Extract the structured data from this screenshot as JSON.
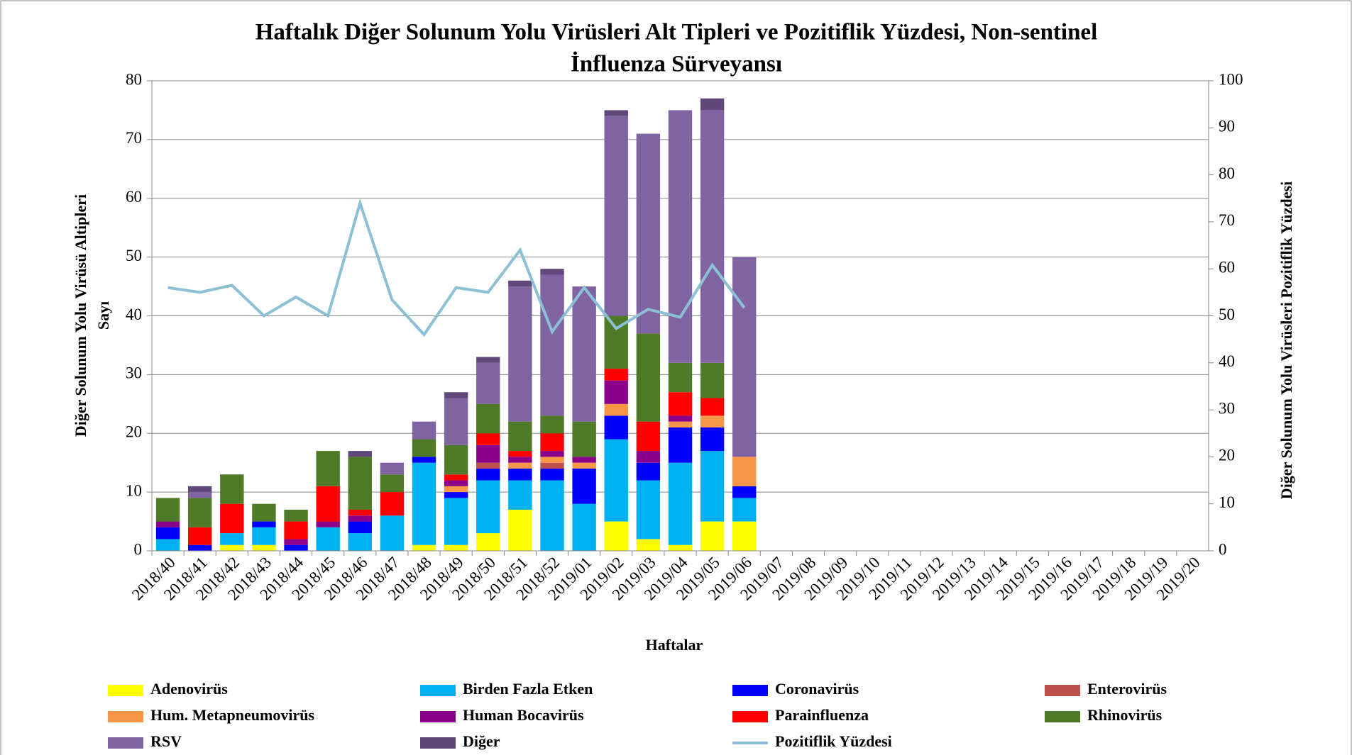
{
  "chart_data": {
    "type": "bar",
    "stacked": true,
    "title": [
      "Haftalık Diğer Solunum Yolu Virüsleri Alt Tipleri ve Pozitiflik Yüzdesi, Non-sentinel",
      "İnfluenza Sürveyansı"
    ],
    "x_label": "Haftalar",
    "y_label": [
      "Diğer Solunum Yolu Virüsü Altipleri",
      "Sayı"
    ],
    "y2_label": "Diğer Solunum Yolu Virüsleri Pozitiflik Yüzdesi",
    "categories": [
      "2018/40",
      "2018/41",
      "2018/42",
      "2018/43",
      "2018/44",
      "2018/45",
      "2018/46",
      "2018/47",
      "2018/48",
      "2018/49",
      "2018/50",
      "2018/51",
      "2018/52",
      "2019/01",
      "2019/02",
      "2019/03",
      "2019/04",
      "2019/05",
      "2019/06",
      "2019/07",
      "2019/08",
      "2019/09",
      "2019/10",
      "2019/11",
      "2019/12",
      "2019/13",
      "2019/14",
      "2019/15",
      "2019/16",
      "2019/17",
      "2019/18",
      "2019/19",
      "2019/20"
    ],
    "ylim": [
      0,
      80
    ],
    "yticks": [
      0,
      10,
      20,
      30,
      40,
      50,
      60,
      70,
      80
    ],
    "y2lim": [
      0,
      100
    ],
    "y2ticks": [
      0,
      10,
      20,
      30,
      40,
      50,
      60,
      70,
      80,
      90,
      100
    ],
    "grid": true,
    "legend": "bottom",
    "series": [
      {
        "name": "Adenovirüs",
        "color": "#ffff00",
        "values": [
          0,
          0,
          1,
          1,
          0,
          0,
          0,
          0,
          1,
          1,
          3,
          7,
          0,
          0,
          5,
          2,
          1,
          5,
          5,
          null,
          null,
          null,
          null,
          null,
          null,
          null,
          null,
          null,
          null,
          null,
          null,
          null,
          null
        ]
      },
      {
        "name": "Birden Fazla Etken",
        "color": "#00b0f0",
        "values": [
          2,
          0,
          2,
          3,
          0,
          4,
          3,
          6,
          14,
          8,
          9,
          5,
          12,
          8,
          14,
          10,
          14,
          12,
          4,
          null,
          null,
          null,
          null,
          null,
          null,
          null,
          null,
          null,
          null,
          null,
          null,
          null,
          null
        ]
      },
      {
        "name": "Coronavirüs",
        "color": "#0000ff",
        "values": [
          2,
          1,
          0,
          1,
          1,
          0,
          2,
          0,
          1,
          1,
          2,
          2,
          2,
          6,
          4,
          3,
          6,
          4,
          2,
          null,
          null,
          null,
          null,
          null,
          null,
          null,
          null,
          null,
          null,
          null,
          null,
          null,
          null
        ]
      },
      {
        "name": "Enterovirüs",
        "color": "#c0504d",
        "values": [
          0,
          0,
          0,
          0,
          0,
          0,
          0,
          0,
          0,
          0,
          1,
          0,
          1,
          0,
          0,
          0,
          0,
          0,
          0,
          null,
          null,
          null,
          null,
          null,
          null,
          null,
          null,
          null,
          null,
          null,
          null,
          null,
          null
        ]
      },
      {
        "name": "Hum. Metapneumovirüs",
        "color": "#f79646",
        "values": [
          0,
          0,
          0,
          0,
          0,
          0,
          0,
          0,
          0,
          1,
          0,
          1,
          1,
          1,
          2,
          0,
          1,
          2,
          5,
          null,
          null,
          null,
          null,
          null,
          null,
          null,
          null,
          null,
          null,
          null,
          null,
          null,
          null
        ]
      },
      {
        "name": "Human Bocavirüs",
        "color": "#8b008b",
        "values": [
          1,
          0,
          0,
          0,
          1,
          1,
          1,
          0,
          0,
          1,
          3,
          1,
          1,
          1,
          4,
          2,
          1,
          0,
          0,
          null,
          null,
          null,
          null,
          null,
          null,
          null,
          null,
          null,
          null,
          null,
          null,
          null,
          null
        ]
      },
      {
        "name": "Parainfluenza",
        "color": "#ff0000",
        "values": [
          0,
          3,
          5,
          0,
          3,
          6,
          1,
          4,
          0,
          1,
          2,
          1,
          3,
          0,
          2,
          5,
          4,
          3,
          0,
          null,
          null,
          null,
          null,
          null,
          null,
          null,
          null,
          null,
          null,
          null,
          null,
          null,
          null
        ]
      },
      {
        "name": "Rhinovirüs",
        "color": "#4f7a28",
        "values": [
          4,
          5,
          5,
          3,
          2,
          6,
          9,
          3,
          3,
          5,
          5,
          5,
          3,
          6,
          9,
          15,
          5,
          6,
          0,
          null,
          null,
          null,
          null,
          null,
          null,
          null,
          null,
          null,
          null,
          null,
          null,
          null,
          null
        ]
      },
      {
        "name": "RSV",
        "color": "#8064a2",
        "values": [
          0,
          1,
          0,
          0,
          0,
          0,
          0,
          2,
          3,
          8,
          7,
          23,
          24,
          23,
          34,
          34,
          43,
          43,
          34,
          null,
          null,
          null,
          null,
          null,
          null,
          null,
          null,
          null,
          null,
          null,
          null,
          null,
          null
        ]
      },
      {
        "name": "Diğer",
        "color": "#60497a",
        "values": [
          0,
          1,
          0,
          0,
          0,
          0,
          1,
          0,
          0,
          1,
          1,
          1,
          1,
          0,
          1,
          0,
          0,
          2,
          0,
          null,
          null,
          null,
          null,
          null,
          null,
          null,
          null,
          null,
          null,
          null,
          null,
          null,
          null
        ]
      },
      {
        "name": "Pozitiflik Yüzdesi",
        "color": "#8cc0d4",
        "type": "line",
        "axis": "y2",
        "values": [
          56,
          55,
          56.5,
          50,
          54,
          50,
          74,
          53.4,
          46,
          56,
          55,
          64,
          46.6,
          56,
          47.3,
          51.4,
          49.7,
          60.8,
          51.7,
          null,
          null,
          null,
          null,
          null,
          null,
          null,
          null,
          null,
          null,
          null,
          null,
          null,
          null
        ]
      }
    ]
  }
}
